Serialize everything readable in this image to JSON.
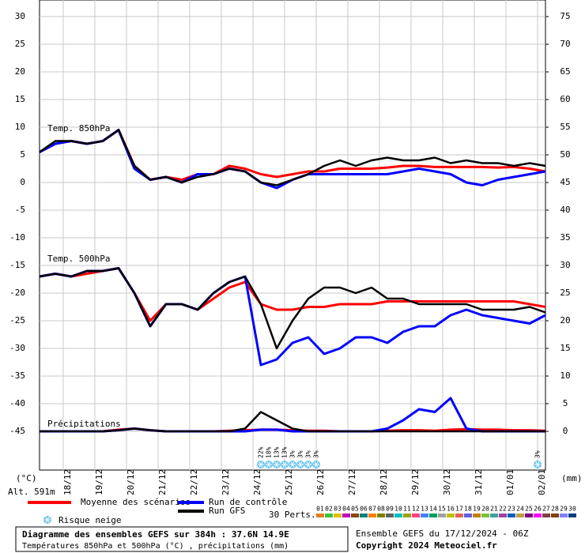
{
  "chart_data": {
    "type": "line",
    "title": "Diagramme des ensembles GEFS sur 384h : 37.6N 14.9E",
    "subtitle": "Températures 850hPa et 500hPa (°C) , précipitations (mm)",
    "run_label": "Ensemble GEFS du 17/12/2024 - 06Z",
    "copyright": "Copyright 2024 Meteociel.fr",
    "y_unit_label": "(°C)",
    "y2_unit_label": "(mm)",
    "altitude_label": "Alt. 591m",
    "panel_labels": [
      "Temp. 850hPa",
      "Temp. 500hPa",
      "Précipitations"
    ],
    "snow_label": "Risque neige",
    "perturbations_label": "30 Perts.",
    "grid": true,
    "x": [
      0,
      12,
      24,
      36,
      48,
      60,
      72,
      84,
      96,
      108,
      120,
      132,
      144,
      156,
      168,
      180,
      192,
      204,
      216,
      228,
      240,
      252,
      264,
      276,
      288,
      300,
      312,
      324,
      336,
      348,
      360,
      372,
      384
    ],
    "xlim": [
      0,
      384
    ],
    "xticks": [
      {
        "value": 18,
        "label": "18/12"
      },
      {
        "value": 42,
        "label": "19/12"
      },
      {
        "value": 66,
        "label": "20/12"
      },
      {
        "value": 90,
        "label": "21/12"
      },
      {
        "value": 114,
        "label": "22/12"
      },
      {
        "value": 138,
        "label": "23/12"
      },
      {
        "value": 162,
        "label": "24/12"
      },
      {
        "value": 186,
        "label": "25/12"
      },
      {
        "value": 210,
        "label": "26/12"
      },
      {
        "value": 234,
        "label": "27/12"
      },
      {
        "value": 258,
        "label": "28/12"
      },
      {
        "value": 282,
        "label": "29/12"
      },
      {
        "value": 306,
        "label": "30/12"
      },
      {
        "value": 330,
        "label": "31/12"
      },
      {
        "value": 354,
        "label": "01/01"
      },
      {
        "value": 378,
        "label": "02/01"
      }
    ],
    "ylim": [
      -52,
      33
    ],
    "yticks": [
      -45,
      -40,
      -35,
      -30,
      -25,
      -20,
      -15,
      -10,
      -5,
      0,
      5,
      10,
      15,
      20,
      25,
      30
    ],
    "y2lim": [
      -7,
      78
    ],
    "y2ticks": [
      0,
      5,
      10,
      15,
      20,
      25,
      30,
      35,
      40,
      45,
      50,
      55,
      60,
      65,
      70,
      75
    ],
    "series": [
      {
        "name": "Moyenne des scénarios",
        "color": "#ff0000",
        "t850": [
          5.5,
          7,
          7.5,
          7,
          7.5,
          9.5,
          3,
          0.5,
          1,
          0.5,
          1.5,
          1.5,
          3,
          2.5,
          1.5,
          1,
          1.5,
          2,
          2,
          2.5,
          2.5,
          2.5,
          2.7,
          3,
          3,
          2.8,
          2.8,
          2.8,
          2.8,
          2.7,
          2.8,
          2.5,
          2
        ],
        "t500": [
          -17,
          -16.5,
          -17,
          -16.5,
          -16,
          -15.5,
          -20,
          -25,
          -22,
          -22,
          -23,
          -21,
          -19,
          -18,
          -22,
          -23,
          -23,
          -22.5,
          -22.5,
          -22,
          -22,
          -22,
          -21.5,
          -21.5,
          -21.5,
          -21.5,
          -21.5,
          -21.5,
          -21.5,
          -21.5,
          -21.5,
          -22,
          -22.5
        ],
        "precip": [
          0,
          0,
          0,
          0,
          0,
          0.3,
          0.5,
          0.2,
          0,
          0,
          0,
          0,
          0.1,
          0.2,
          0.3,
          0.3,
          0.2,
          0.1,
          0.1,
          0,
          0,
          0,
          0.1,
          0.2,
          0.2,
          0.1,
          0.3,
          0.4,
          0.3,
          0.3,
          0.2,
          0.2,
          0.1
        ]
      },
      {
        "name": "Run de contrôle",
        "color": "#0000ff",
        "t850": [
          5.5,
          7,
          7.5,
          7,
          7.5,
          9.5,
          2.5,
          0.5,
          1,
          0,
          1.5,
          1.5,
          2.5,
          2,
          0,
          -1,
          0.5,
          1.5,
          1.5,
          1.5,
          1.5,
          1.5,
          1.5,
          2,
          2.5,
          2,
          1.5,
          0,
          -0.5,
          0.5,
          1,
          1.5,
          2
        ],
        "t500": [
          -17,
          -16.5,
          -17,
          -16,
          -16,
          -15.5,
          -20,
          -26,
          -22,
          -22,
          -23,
          -20,
          -18,
          -17,
          -33,
          -32,
          -29,
          -28,
          -31,
          -30,
          -28,
          -28,
          -29,
          -27,
          -26,
          -26,
          -24,
          -23,
          -24,
          -24.5,
          -25,
          -25.5,
          -24
        ],
        "precip": [
          0,
          0,
          0,
          0,
          0,
          0.2,
          0.5,
          0.2,
          0,
          0,
          0,
          0,
          0,
          0,
          0.3,
          0.3,
          0,
          0,
          0,
          0,
          0,
          0,
          0.5,
          2,
          4,
          3.5,
          6,
          0.5,
          0,
          0,
          0,
          0,
          0
        ]
      },
      {
        "name": "Run GFS",
        "color": "#000000",
        "t850": [
          5.5,
          7.5,
          7.5,
          7,
          7.5,
          9.5,
          3,
          0.5,
          1,
          0,
          1,
          1.5,
          2.5,
          2,
          0,
          -0.5,
          0.5,
          1.5,
          3,
          4,
          3,
          4,
          4.5,
          4,
          4,
          4.5,
          3.5,
          4,
          3.5,
          3.5,
          3,
          3.5,
          3
        ],
        "t500": [
          -17,
          -16.5,
          -17,
          -16,
          -16,
          -15.5,
          -20,
          -26,
          -22,
          -22,
          -23,
          -20,
          -18,
          -17,
          -22,
          -30,
          -25,
          -21,
          -19,
          -19,
          -20,
          -19,
          -21,
          -21,
          -22,
          -22,
          -22,
          -22,
          -23,
          -23,
          -23,
          -22.5,
          -23.5
        ],
        "precip": [
          0,
          0,
          0,
          0,
          0,
          0.2,
          0.5,
          0.2,
          0,
          0,
          0,
          0,
          0,
          0.5,
          3.5,
          2,
          0.5,
          0,
          0,
          0,
          0,
          0,
          0,
          0,
          0,
          0,
          0,
          0,
          0,
          0,
          0,
          0,
          0
        ]
      }
    ],
    "snow_risk": {
      "x": [
        168,
        174,
        180,
        186,
        192,
        198,
        204,
        210,
        378
      ],
      "values": [
        22,
        18,
        13,
        13,
        3,
        3,
        3,
        3,
        3
      ],
      "value_labels": [
        "22%",
        "18%",
        "13%",
        "13%",
        "3%",
        "3%",
        "3%",
        "3%",
        "3%"
      ],
      "color": "#6cc4f0"
    },
    "perturbations": [
      {
        "name": "01",
        "color": "#e08020"
      },
      {
        "name": "02",
        "color": "#40c040"
      },
      {
        "name": "03",
        "color": "#e0c000"
      },
      {
        "name": "04",
        "color": "#c000c0"
      },
      {
        "name": "05",
        "color": "#8b4513"
      },
      {
        "name": "06",
        "color": "#008080"
      },
      {
        "name": "07",
        "color": "#ff8000"
      },
      {
        "name": "08",
        "color": "#808000"
      },
      {
        "name": "09",
        "color": "#606060"
      },
      {
        "name": "10",
        "color": "#00c0c0"
      },
      {
        "name": "11",
        "color": "#a0a000"
      },
      {
        "name": "12",
        "color": "#ff4080"
      },
      {
        "name": "13",
        "color": "#4080ff"
      },
      {
        "name": "14",
        "color": "#00a060"
      },
      {
        "name": "15",
        "color": "#a0a0a0"
      },
      {
        "name": "16",
        "color": "#c0c000"
      },
      {
        "name": "17",
        "color": "#e06060"
      },
      {
        "name": "18",
        "color": "#6060e0"
      },
      {
        "name": "19",
        "color": "#c08000"
      },
      {
        "name": "20",
        "color": "#80c040"
      },
      {
        "name": "21",
        "color": "#40a0a0"
      },
      {
        "name": "22",
        "color": "#a040a0"
      },
      {
        "name": "23",
        "color": "#0060c0"
      },
      {
        "name": "24",
        "color": "#c0a040"
      },
      {
        "name": "25",
        "color": "#800080"
      },
      {
        "name": "26",
        "color": "#ff00ff"
      },
      {
        "name": "27",
        "color": "#804040"
      },
      {
        "name": "28",
        "color": "#804000"
      },
      {
        "name": "29",
        "color": "#8080ff"
      },
      {
        "name": "30",
        "color": "#004080"
      }
    ]
  }
}
